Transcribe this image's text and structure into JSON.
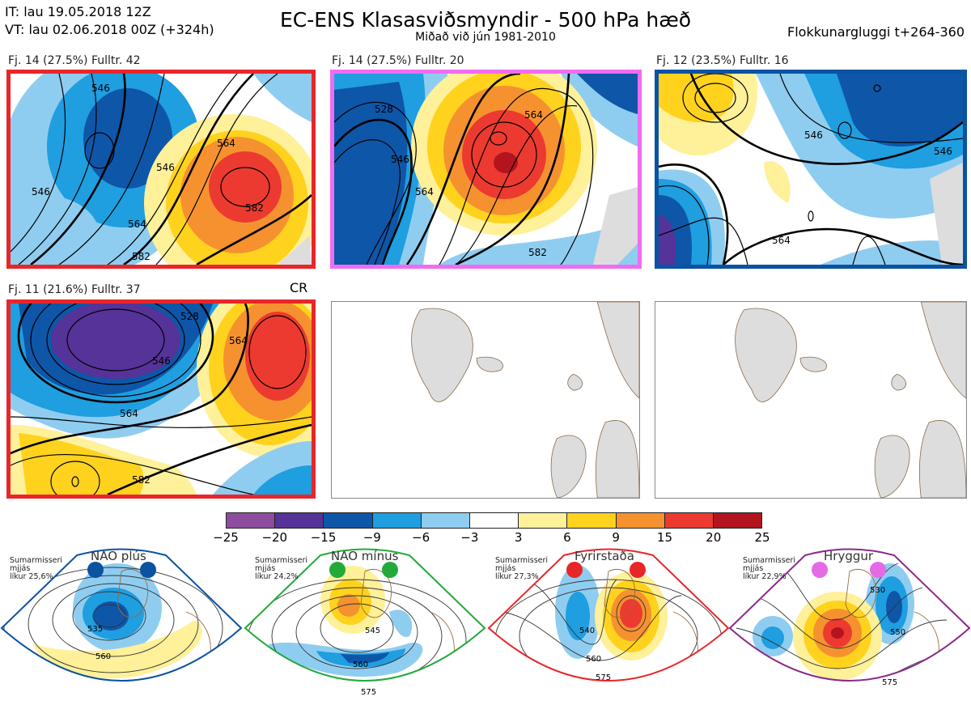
{
  "header": {
    "it_line": "IT: lau 19.05.2018 12Z",
    "vt_line": "VT: lau 02.06.2018 00Z  (+324h)",
    "title": "EC-ENS Klasasviðsmyndir - 500 hPa hæð",
    "subtitle": "Miðað við jún 1981-2010",
    "window": "Flokkunargluggi t+264-360"
  },
  "clusters": [
    {
      "label": "Fj. 14 (27.5%)   Fulltr. 42",
      "border_color": "#e8262a",
      "contours": [
        "546",
        "546",
        "564",
        "582",
        "546",
        "564",
        "582"
      ]
    },
    {
      "label": "Fj. 14 (27.5%)   Fulltr. 20",
      "border_color": "#f06cf0",
      "contours": [
        "528",
        "546",
        "564",
        "564",
        "582"
      ]
    },
    {
      "label": "Fj. 12 (23.5%)   Fulltr. 16",
      "border_color": "#0a52a2",
      "contours": [
        "546",
        "564",
        "546"
      ]
    },
    {
      "label": "Fj. 11 (21.6%)   Fulltr. 37",
      "border_color": "#e8262a",
      "contours": [
        "528",
        "546",
        "564",
        "564",
        "582"
      ]
    }
  ],
  "cr_label": "CR",
  "colorbar": {
    "colors": [
      "#8e4c9e",
      "#553399",
      "#0e56a8",
      "#1f9ee0",
      "#8fcdf0",
      "#ffffff",
      "#fff09a",
      "#ffd21e",
      "#f5922f",
      "#ec3a30",
      "#b3141e"
    ],
    "ticks": [
      "−25",
      "−20",
      "−15",
      "−9",
      "−6",
      "−3",
      "3",
      "6",
      "9",
      "15",
      "20",
      "25"
    ]
  },
  "regimes": [
    {
      "name": "NAO plús",
      "info": [
        "Sumarmisseri",
        "mjjás",
        "líkur 25,6%"
      ],
      "color": "#0a52a2",
      "contours": [
        "535",
        "560"
      ]
    },
    {
      "name": "NAO mínus",
      "info": [
        "Sumarmisseri",
        "mjjás",
        "líkur 24,2%"
      ],
      "color": "#22aa3a",
      "contours": [
        "545",
        "560",
        "575"
      ]
    },
    {
      "name": "Fyrirstaða",
      "info": [
        "Sumarmisseri",
        "mjjás",
        "líkur 27,3%"
      ],
      "color": "#e8262a",
      "contours": [
        "540",
        "560",
        "575"
      ]
    },
    {
      "name": "Hryggur",
      "info": [
        "Sumarmisseri",
        "mjjás",
        "líkur 22,9%"
      ],
      "color": "#e66ae6",
      "contours": [
        "530",
        "550",
        "575"
      ]
    }
  ]
}
